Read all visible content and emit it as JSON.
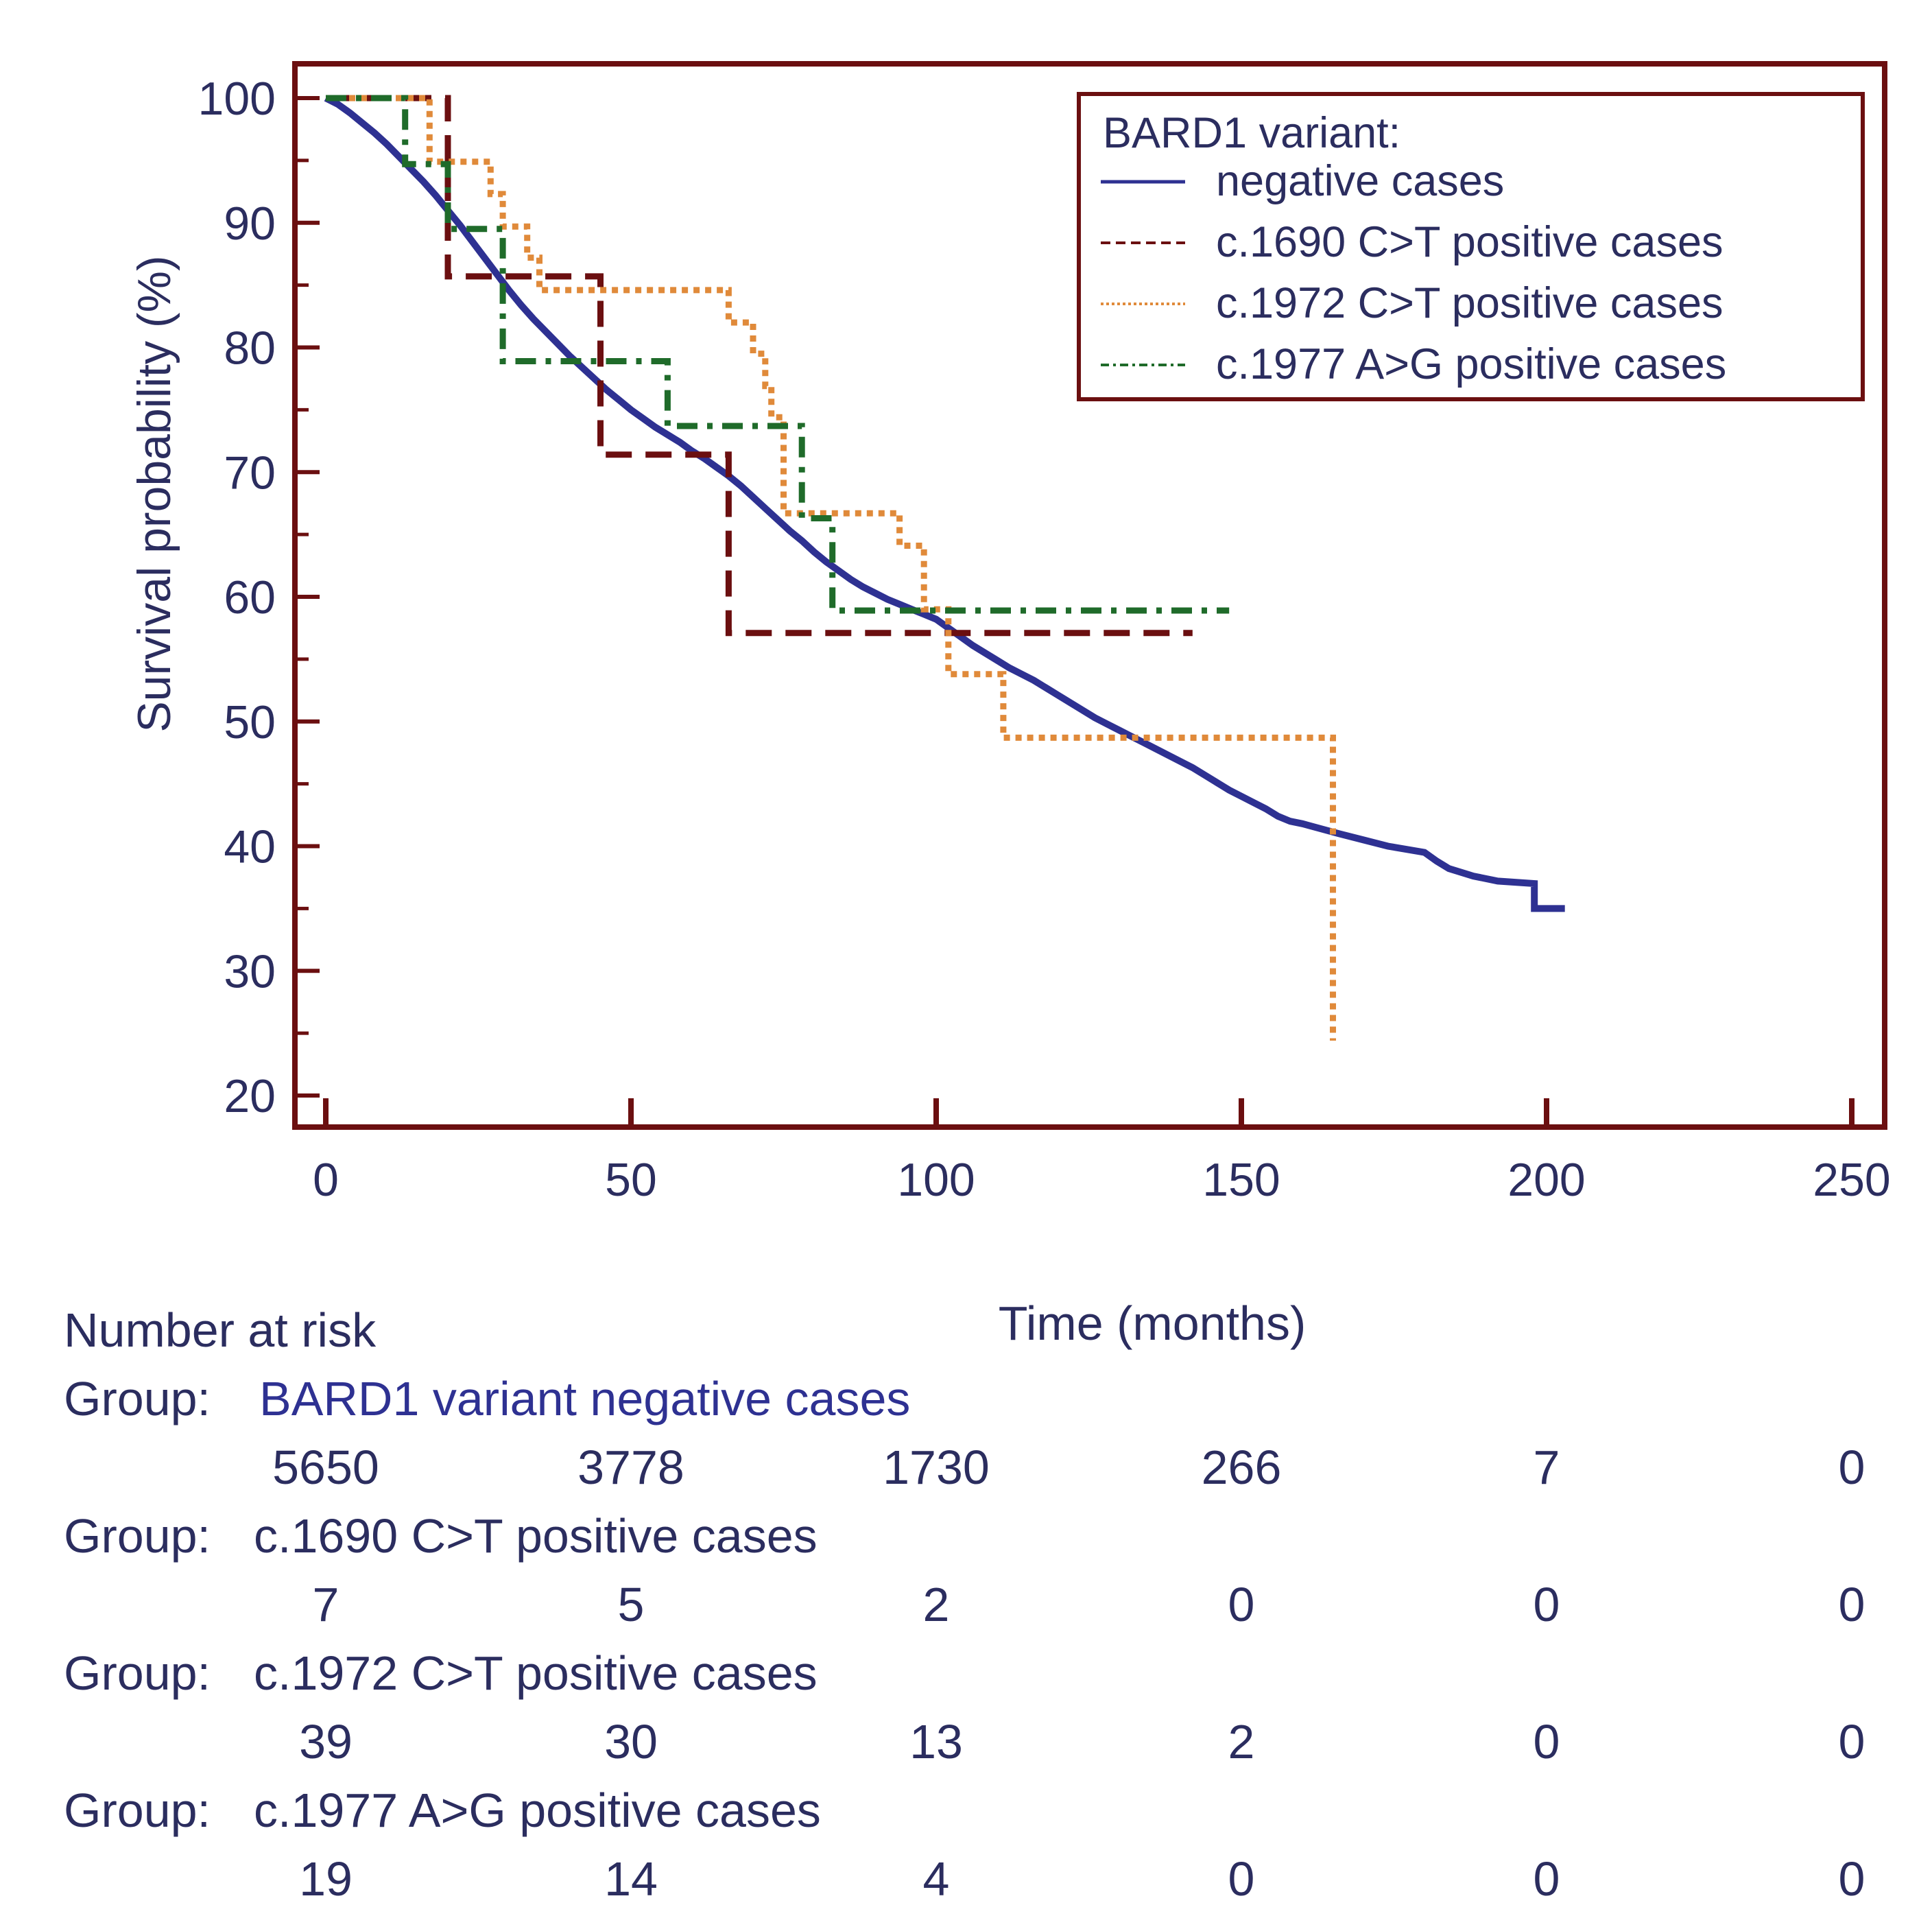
{
  "chart_data": {
    "type": "line",
    "subtype": "kaplan-meier",
    "title": "",
    "xlabel": "Time (months)",
    "ylabel": "Survival probability (%)",
    "xlim": [
      0,
      250
    ],
    "ylim": [
      20,
      100
    ],
    "x_ticks": [
      0,
      50,
      100,
      150,
      200,
      250
    ],
    "y_ticks": [
      20,
      30,
      40,
      50,
      60,
      70,
      80,
      90,
      100
    ],
    "x_tick_labels": [
      "0",
      "50",
      "100",
      "150",
      "200",
      "250"
    ],
    "y_tick_labels": [
      "20",
      "30",
      "40",
      "50",
      "60",
      "70",
      "80",
      "90",
      "100"
    ],
    "legend": {
      "title": "BARD1 variant:",
      "position": "top-right"
    },
    "series": [
      {
        "name": "negative cases",
        "color": "#2e3192",
        "style": "solid",
        "points": [
          [
            0,
            100
          ],
          [
            2,
            99.5
          ],
          [
            4,
            98.8
          ],
          [
            6,
            98.0
          ],
          [
            8,
            97.2
          ],
          [
            10,
            96.3
          ],
          [
            12,
            95.3
          ],
          [
            14,
            94.3
          ],
          [
            16,
            93.3
          ],
          [
            18,
            92.2
          ],
          [
            20,
            91.0
          ],
          [
            22,
            89.8
          ],
          [
            24,
            88.5
          ],
          [
            26,
            87.2
          ],
          [
            28,
            85.9
          ],
          [
            30,
            84.6
          ],
          [
            32,
            83.4
          ],
          [
            34,
            82.3
          ],
          [
            36,
            81.3
          ],
          [
            38,
            80.3
          ],
          [
            40,
            79.3
          ],
          [
            42,
            78.4
          ],
          [
            44,
            77.5
          ],
          [
            46,
            76.6
          ],
          [
            48,
            75.8
          ],
          [
            50,
            75.0
          ],
          [
            52,
            74.3
          ],
          [
            54,
            73.6
          ],
          [
            56,
            73.0
          ],
          [
            58,
            72.4
          ],
          [
            60,
            71.7
          ],
          [
            62,
            71.1
          ],
          [
            64,
            70.4
          ],
          [
            66,
            69.7
          ],
          [
            68,
            68.9
          ],
          [
            70,
            68.0
          ],
          [
            72,
            67.1
          ],
          [
            74,
            66.2
          ],
          [
            76,
            65.3
          ],
          [
            78,
            64.5
          ],
          [
            80,
            63.6
          ],
          [
            82,
            62.8
          ],
          [
            84,
            62.1
          ],
          [
            86,
            61.4
          ],
          [
            88,
            60.8
          ],
          [
            90,
            60.3
          ],
          [
            92,
            59.8
          ],
          [
            94,
            59.4
          ],
          [
            96,
            59.0
          ],
          [
            98,
            58.6
          ],
          [
            100,
            58.2
          ],
          [
            102,
            57.5
          ],
          [
            104,
            56.8
          ],
          [
            106,
            56.1
          ],
          [
            108,
            55.5
          ],
          [
            110,
            54.9
          ],
          [
            112,
            54.3
          ],
          [
            114,
            53.8
          ],
          [
            116,
            53.3
          ],
          [
            118,
            52.7
          ],
          [
            120,
            52.1
          ],
          [
            122,
            51.5
          ],
          [
            124,
            50.9
          ],
          [
            126,
            50.3
          ],
          [
            128,
            49.8
          ],
          [
            130,
            49.3
          ],
          [
            132,
            48.8
          ],
          [
            134,
            48.3
          ],
          [
            136,
            47.8
          ],
          [
            138,
            47.3
          ],
          [
            140,
            46.8
          ],
          [
            142,
            46.3
          ],
          [
            144,
            45.7
          ],
          [
            146,
            45.1
          ],
          [
            148,
            44.5
          ],
          [
            150,
            44.0
          ],
          [
            152,
            43.5
          ],
          [
            154,
            43.0
          ],
          [
            156,
            42.4
          ],
          [
            158,
            42.0
          ],
          [
            160,
            41.8
          ],
          [
            163,
            41.4
          ],
          [
            166,
            41.0
          ],
          [
            170,
            40.5
          ],
          [
            174,
            40.0
          ],
          [
            180,
            39.5
          ],
          [
            182,
            38.8
          ],
          [
            184,
            38.2
          ],
          [
            188,
            37.6
          ],
          [
            192,
            37.2
          ],
          [
            198,
            37.0
          ],
          [
            198,
            35.0
          ],
          [
            203,
            35.0
          ]
        ]
      },
      {
        "name": "c.1690 C>T positive cases",
        "color": "#6b0f10",
        "style": "dashed",
        "points": [
          [
            0,
            100
          ],
          [
            20,
            100
          ],
          [
            20,
            85.7
          ],
          [
            45,
            85.7
          ],
          [
            45,
            71.4
          ],
          [
            66,
            71.4
          ],
          [
            66,
            57.1
          ],
          [
            142,
            57.1
          ]
        ]
      },
      {
        "name": "c.1972 C>T positive cases",
        "color": "#e08a3a",
        "style": "dotted",
        "points": [
          [
            0,
            100
          ],
          [
            17,
            100
          ],
          [
            17,
            94.9
          ],
          [
            27,
            94.9
          ],
          [
            27,
            92.3
          ],
          [
            29,
            92.3
          ],
          [
            29,
            89.7
          ],
          [
            33,
            89.7
          ],
          [
            33,
            87.2
          ],
          [
            35,
            87.2
          ],
          [
            35,
            84.6
          ],
          [
            66,
            84.6
          ],
          [
            66,
            82.0
          ],
          [
            70,
            82.0
          ],
          [
            70,
            79.5
          ],
          [
            72,
            79.5
          ],
          [
            72,
            76.9
          ],
          [
            73,
            76.9
          ],
          [
            73,
            74.4
          ],
          [
            75,
            74.4
          ],
          [
            75,
            66.7
          ],
          [
            94,
            66.7
          ],
          [
            94,
            64.1
          ],
          [
            98,
            64.1
          ],
          [
            98,
            59.0
          ],
          [
            102,
            59.0
          ],
          [
            102,
            53.8
          ],
          [
            111,
            53.8
          ],
          [
            111,
            48.7
          ],
          [
            165,
            48.7
          ],
          [
            165,
            24.4
          ]
        ]
      },
      {
        "name": "c.1977 A>G positive cases",
        "color": "#1f6b2a",
        "style": "dashdot",
        "points": [
          [
            0,
            100
          ],
          [
            13,
            100
          ],
          [
            13,
            94.7
          ],
          [
            20,
            94.7
          ],
          [
            20,
            89.5
          ],
          [
            29,
            89.5
          ],
          [
            29,
            78.9
          ],
          [
            56,
            78.9
          ],
          [
            56,
            73.7
          ],
          [
            78,
            73.7
          ],
          [
            78,
            66.3
          ],
          [
            83,
            66.3
          ],
          [
            83,
            58.9
          ],
          [
            148,
            58.9
          ]
        ]
      }
    ],
    "number_at_risk": {
      "title": "Number at risk",
      "group_prefix": "Group:",
      "groups": [
        {
          "name": "BARD1 variant negative cases",
          "counts": [
            "5650",
            "3778",
            "1730",
            "266",
            "7",
            "0"
          ]
        },
        {
          "name": "c.1690 C>T positive cases",
          "counts": [
            "7",
            "5",
            "2",
            "0",
            "0",
            "0"
          ]
        },
        {
          "name": "c.1972 C>T positive cases",
          "counts": [
            "39",
            "30",
            "13",
            "2",
            "0",
            "0"
          ]
        },
        {
          "name": "c.1977 A>G positive cases",
          "counts": [
            "19",
            "14",
            "4",
            "0",
            "0",
            "0"
          ]
        }
      ]
    }
  },
  "colors": {
    "frame": "#6b0f10",
    "text": "#2b2d5f"
  }
}
